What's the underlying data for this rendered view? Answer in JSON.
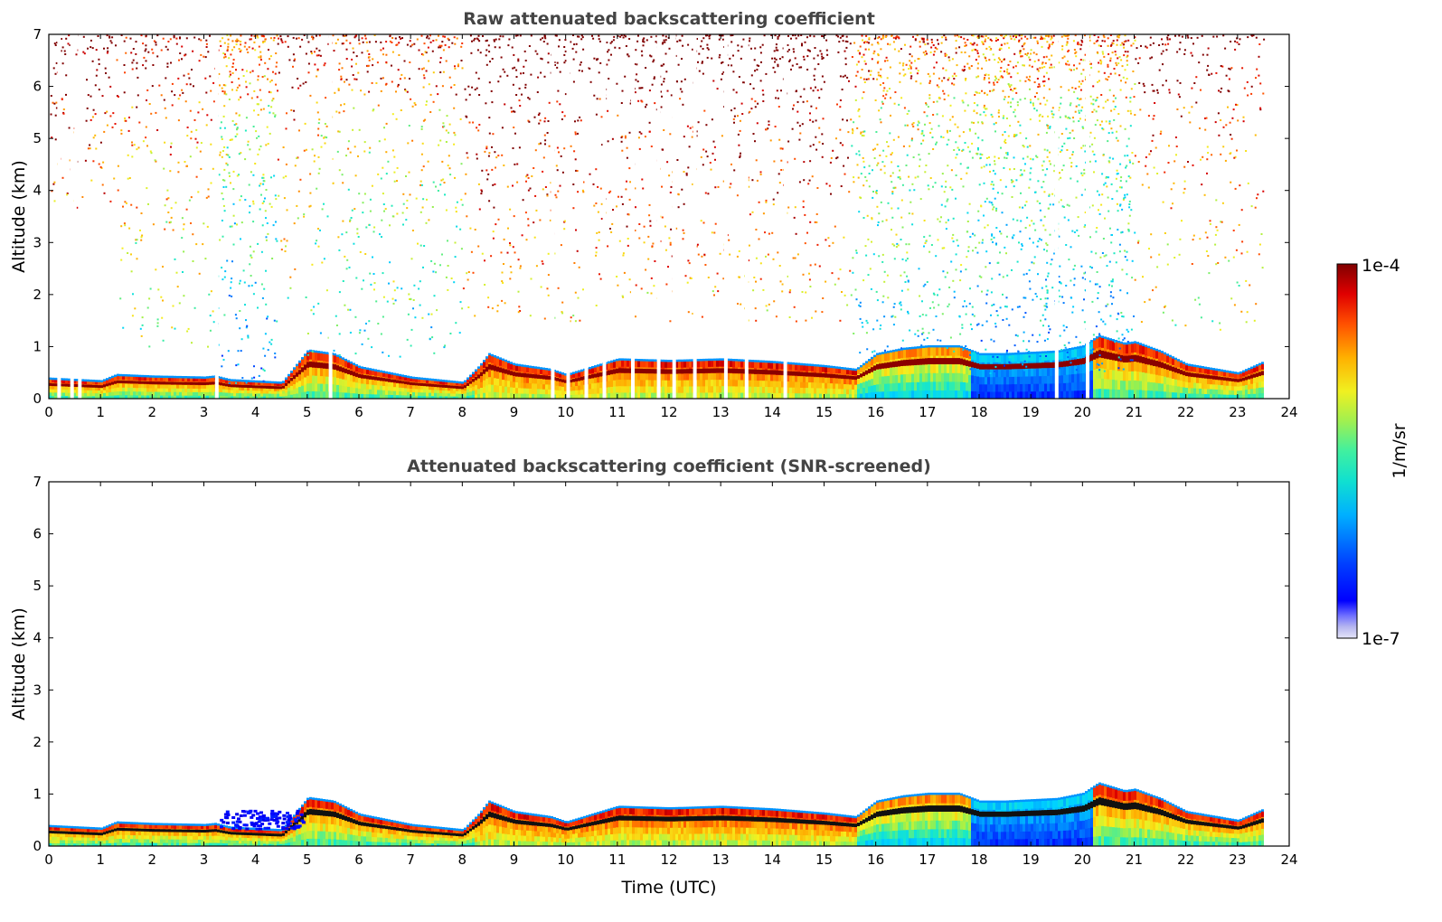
{
  "chart_data": [
    {
      "type": "heatmap",
      "title": "Raw attenuated backscattering coefficient",
      "xlabel": "",
      "ylabel": "Altitude (km)",
      "xlim": [
        0,
        24
      ],
      "ylim": [
        0,
        7
      ],
      "xticks": [
        0,
        1,
        2,
        3,
        4,
        5,
        6,
        7,
        8,
        9,
        10,
        11,
        12,
        13,
        14,
        15,
        16,
        17,
        18,
        19,
        20,
        21,
        22,
        23,
        24
      ],
      "yticks": [
        0,
        1,
        2,
        3,
        4,
        5,
        6,
        7
      ],
      "data_end_time": 23.5,
      "noise_regions": [
        {
          "t0": 0.0,
          "t1": 1.3,
          "bottom": 3.5,
          "density": 0.35,
          "level": 0.65
        },
        {
          "t0": 1.3,
          "t1": 3.2,
          "bottom": 1.0,
          "density": 0.3,
          "level": 0.55
        },
        {
          "t0": 3.2,
          "t1": 4.4,
          "bottom": 0.3,
          "density": 0.55,
          "level": 0.35
        },
        {
          "t0": 4.4,
          "t1": 5.0,
          "bottom": 1.5,
          "density": 0.25,
          "level": 0.55
        },
        {
          "t0": 5.0,
          "t1": 8.0,
          "bottom": 0.8,
          "density": 0.35,
          "level": 0.45
        },
        {
          "t0": 8.0,
          "t1": 15.5,
          "bottom": 1.5,
          "density": 0.35,
          "level": 0.7
        },
        {
          "t0": 15.5,
          "t1": 17.8,
          "bottom": 0.9,
          "density": 0.55,
          "level": 0.4
        },
        {
          "t0": 17.8,
          "t1": 21.0,
          "bottom": 0.5,
          "density": 0.7,
          "level": 0.35
        },
        {
          "t0": 21.0,
          "t1": 23.5,
          "bottom": 1.3,
          "density": 0.25,
          "level": 0.6
        }
      ],
      "gap_times": [
        0.2,
        0.45,
        0.6,
        3.25,
        5.45,
        9.75,
        10.05,
        10.4,
        10.75,
        11.3,
        11.8,
        12.1,
        12.5,
        13.1,
        13.5,
        14.25,
        19.5,
        20.1
      ]
    },
    {
      "type": "heatmap",
      "title": "Attenuated backscattering coefficient (SNR-screened)",
      "xlabel": "Time (UTC)",
      "ylabel": "Altitude (km)",
      "xlim": [
        0,
        24
      ],
      "ylim": [
        0,
        7
      ],
      "xticks": [
        0,
        1,
        2,
        3,
        4,
        5,
        6,
        7,
        8,
        9,
        10,
        11,
        12,
        13,
        14,
        15,
        16,
        17,
        18,
        19,
        20,
        21,
        22,
        23,
        24
      ],
      "yticks": [
        0,
        1,
        2,
        3,
        4,
        5,
        6,
        7
      ],
      "data_end_time": 23.5
    }
  ],
  "boundary_layer_top_km": [
    [
      0.0,
      0.38
    ],
    [
      1.0,
      0.33
    ],
    [
      1.3,
      0.45
    ],
    [
      2.0,
      0.42
    ],
    [
      3.0,
      0.4
    ],
    [
      3.2,
      0.42
    ],
    [
      3.5,
      0.35
    ],
    [
      4.5,
      0.3
    ],
    [
      5.0,
      0.92
    ],
    [
      5.5,
      0.85
    ],
    [
      6.0,
      0.6
    ],
    [
      7.0,
      0.4
    ],
    [
      8.0,
      0.3
    ],
    [
      8.3,
      0.6
    ],
    [
      8.5,
      0.85
    ],
    [
      9.0,
      0.65
    ],
    [
      9.7,
      0.55
    ],
    [
      10.0,
      0.45
    ],
    [
      10.5,
      0.6
    ],
    [
      11.0,
      0.75
    ],
    [
      12.0,
      0.72
    ],
    [
      13.0,
      0.75
    ],
    [
      14.0,
      0.7
    ],
    [
      15.0,
      0.62
    ],
    [
      15.6,
      0.55
    ],
    [
      16.0,
      0.85
    ],
    [
      16.5,
      0.95
    ],
    [
      17.0,
      1.0
    ],
    [
      17.6,
      1.0
    ],
    [
      18.0,
      0.85
    ],
    [
      18.5,
      0.85
    ],
    [
      19.5,
      0.9
    ],
    [
      20.0,
      1.0
    ],
    [
      20.3,
      1.2
    ],
    [
      20.8,
      1.05
    ],
    [
      21.0,
      1.08
    ],
    [
      21.5,
      0.9
    ],
    [
      22.0,
      0.65
    ],
    [
      23.0,
      0.48
    ],
    [
      23.5,
      0.7
    ]
  ],
  "colorbar": {
    "label": "1/m/sr",
    "max_label": "1e-4",
    "min_label": "1e-7",
    "colormap": "jet",
    "scale": "log"
  }
}
